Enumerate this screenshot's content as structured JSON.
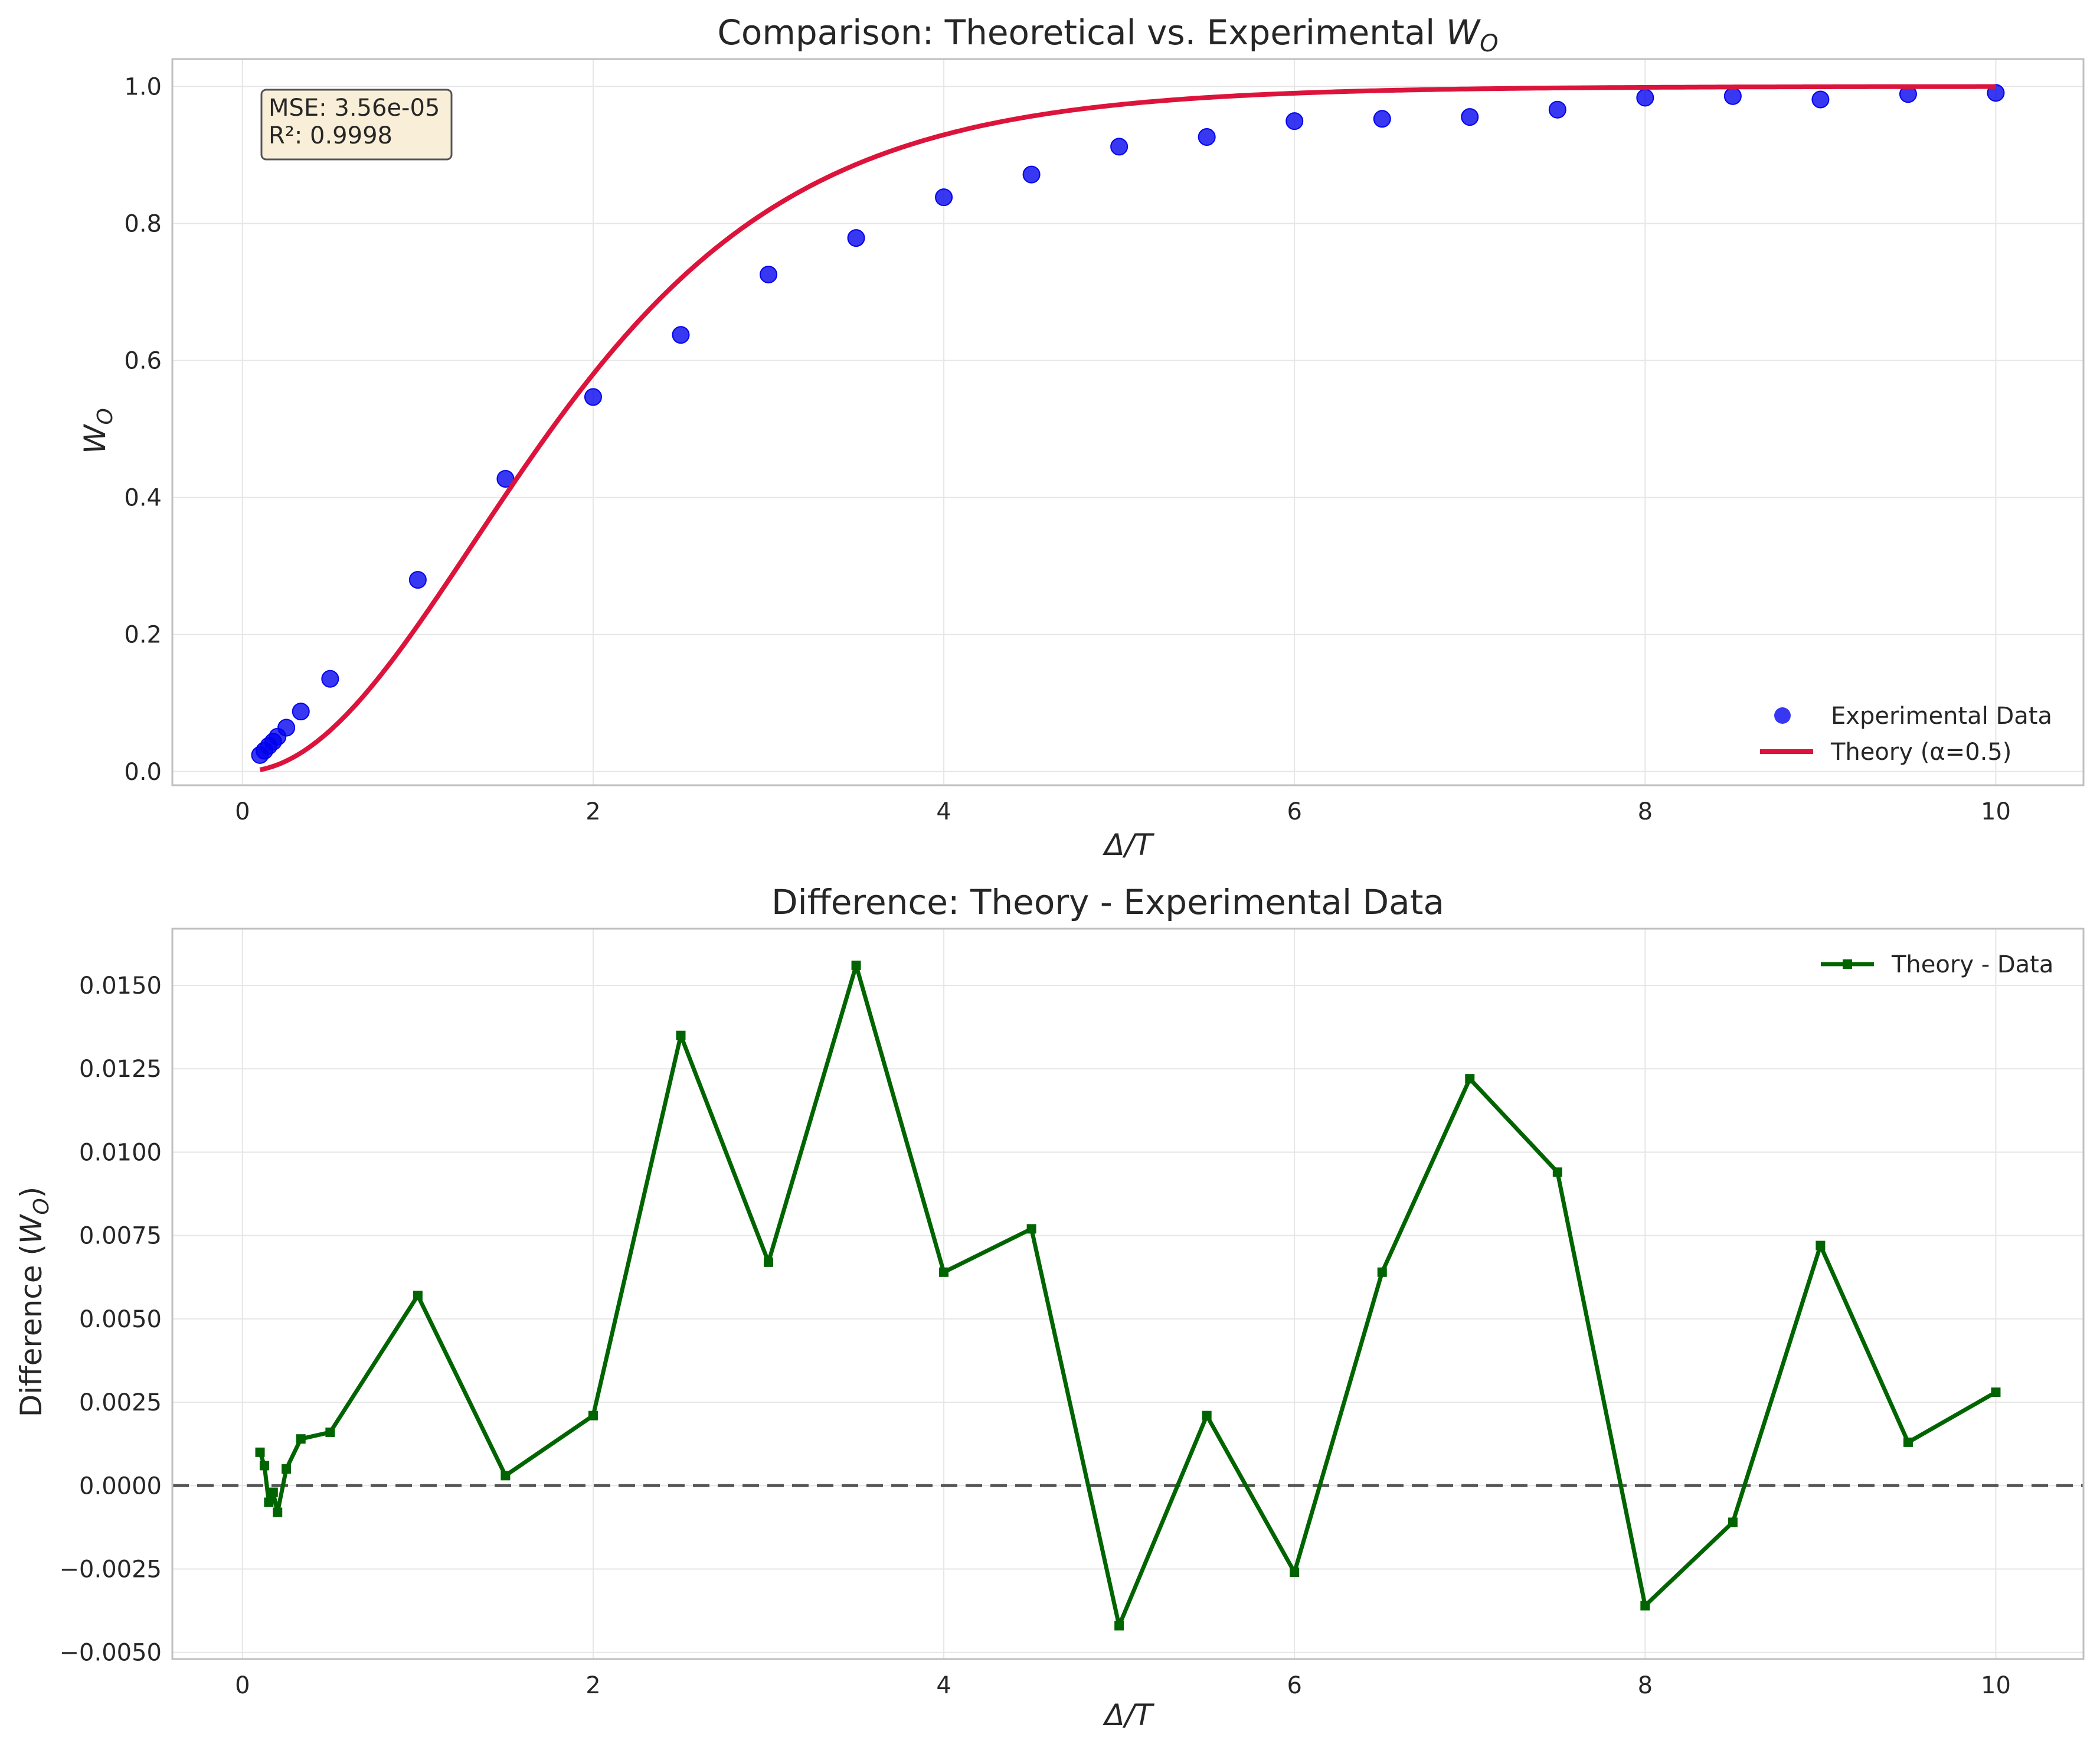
{
  "colors": {
    "experimental": "#0000ee",
    "theory": "#dc143c",
    "difference": "#006400",
    "zero_line": "#555555",
    "grid": "#e6e6e6",
    "axes_edge": "#bfbfbf",
    "annotation_fill": "#f9efd9",
    "annotation_edge": "#555555"
  },
  "chart_data": [
    {
      "type": "scatter",
      "title_prefix": "Comparison: Theoretical vs. Experimental ",
      "title_symbol": "W",
      "title_subscript": "O",
      "xlabel": "Δ/T",
      "ylabel_symbol": "W",
      "ylabel_subscript": "O",
      "xlim": [
        -0.4,
        10.5
      ],
      "ylim": [
        -0.02,
        1.04
      ],
      "xticks": [
        0,
        2,
        4,
        6,
        8,
        10
      ],
      "yticks": [
        0.0,
        0.2,
        0.4,
        0.6,
        0.8,
        1.0
      ],
      "xtick_labels": [
        "0",
        "2",
        "4",
        "6",
        "8",
        "10"
      ],
      "ytick_labels": [
        "0.0",
        "0.2",
        "0.4",
        "0.6",
        "0.8",
        "1.0"
      ],
      "grid": true,
      "legend_position": "lower-right",
      "annotation": {
        "mse": "MSE: 3.56e-05",
        "r2": "R²: 0.9998"
      },
      "series": [
        {
          "name": "Experimental Data",
          "kind": "scatter",
          "x": [
            0.1,
            0.125,
            0.15,
            0.175,
            0.2,
            0.25,
            0.333,
            0.5,
            1.0,
            1.5,
            2.0,
            2.5,
            3.0,
            3.5,
            4.0,
            4.5,
            5.0,
            5.5,
            6.0,
            6.5,
            7.0,
            7.5,
            8.0,
            8.5,
            9.0,
            9.5,
            10.0
          ],
          "y": [
            0.0241,
            0.0304,
            0.0374,
            0.0436,
            0.0508,
            0.064,
            0.0876,
            0.1353,
            0.2798,
            0.4273,
            0.5467,
            0.6373,
            0.7255,
            0.7788,
            0.8382,
            0.8714,
            0.9121,
            0.9262,
            0.9494,
            0.9527,
            0.9554,
            0.9661,
            0.9836,
            0.9859,
            0.981,
            0.9889,
            0.9906
          ]
        },
        {
          "name": "Theory (α=0.5)",
          "kind": "line",
          "alpha": 0.5
        }
      ]
    },
    {
      "type": "line",
      "title": "Difference: Theory - Experimental Data",
      "xlabel": "Δ/T",
      "ylabel_prefix": "Difference (",
      "ylabel_symbol": "W",
      "ylabel_subscript": "O",
      "ylabel_suffix": ")",
      "xlim": [
        -0.4,
        10.5
      ],
      "ylim": [
        -0.0052,
        0.0167
      ],
      "xticks": [
        0,
        2,
        4,
        6,
        8,
        10
      ],
      "yticks": [
        -0.005,
        -0.0025,
        0.0,
        0.0025,
        0.005,
        0.0075,
        0.01,
        0.0125,
        0.015
      ],
      "xtick_labels": [
        "0",
        "2",
        "4",
        "6",
        "8",
        "10"
      ],
      "ytick_labels": [
        "−0.0050",
        "−0.0025",
        "0.0000",
        "0.0025",
        "0.0050",
        "0.0075",
        "0.0100",
        "0.0125",
        "0.0150"
      ],
      "grid": true,
      "legend_position": "top-right",
      "reference_line_y": 0.0,
      "series": [
        {
          "name": "Theory - Data",
          "x": [
            0.1,
            0.125,
            0.15,
            0.175,
            0.2,
            0.25,
            0.333,
            0.5,
            1.0,
            1.5,
            2.0,
            2.5,
            3.0,
            3.5,
            4.0,
            4.5,
            5.0,
            5.5,
            6.0,
            6.5,
            7.0,
            7.5,
            8.0,
            8.5,
            9.0,
            9.5,
            10.0
          ],
          "y": [
            0.001,
            0.0006,
            -0.0005,
            -0.0002,
            -0.0008,
            0.0005,
            0.0014,
            0.0016,
            0.0057,
            0.0003,
            0.0021,
            0.0135,
            0.0067,
            0.0156,
            0.0064,
            0.0077,
            -0.0042,
            0.0021,
            -0.0026,
            0.0064,
            0.0122,
            0.0094,
            -0.0036,
            -0.0011,
            0.0072,
            0.0013,
            0.0028
          ]
        }
      ]
    }
  ]
}
